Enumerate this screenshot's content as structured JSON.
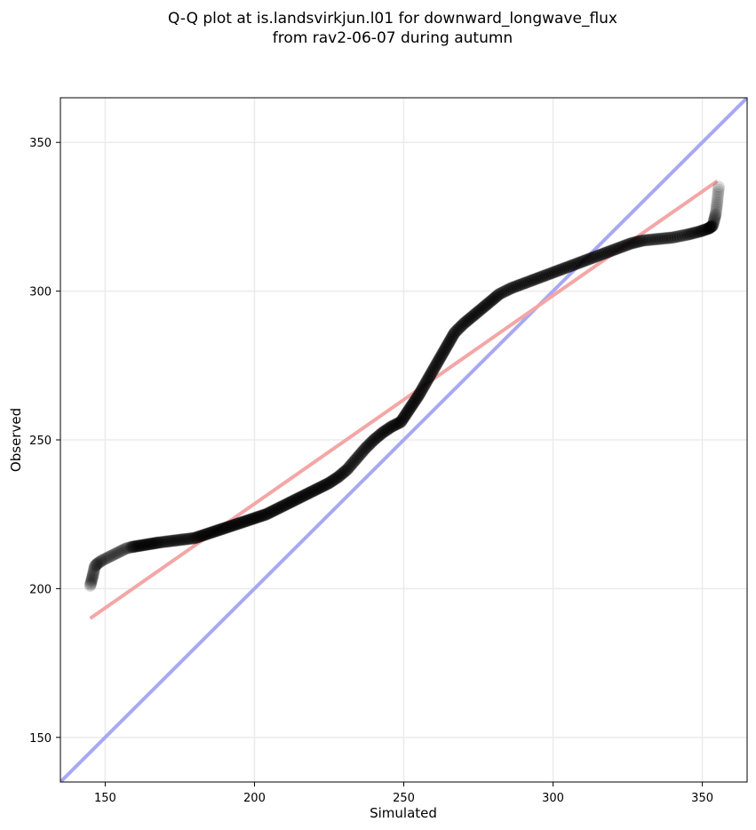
{
  "chart_data": {
    "type": "scatter",
    "title_lines": [
      "Q-Q plot at is.landsvirkjun.l01 for downward_longwave_flux",
      "from rav2-06-07 during autumn"
    ],
    "xlabel": "Simulated",
    "ylabel": "Observed",
    "xlim": [
      135,
      365
    ],
    "ylim": [
      135,
      365
    ],
    "xticks": [
      150,
      200,
      250,
      300,
      350
    ],
    "yticks": [
      150,
      200,
      250,
      300,
      350
    ],
    "grid": true,
    "colors": {
      "points": "#000000",
      "fit_line": "#f4a6a6",
      "identity_line": "#a8a8f4",
      "grid": "#ebebeb"
    },
    "fit_line": {
      "x": [
        145,
        355
      ],
      "y": [
        190,
        337
      ]
    },
    "identity_line": {
      "x": [
        135,
        365
      ],
      "y": [
        135,
        365
      ]
    },
    "quantiles": [
      [
        145,
        201
      ],
      [
        145.5,
        203
      ],
      [
        146,
        205
      ],
      [
        146.5,
        207.5
      ],
      [
        147.5,
        208.5
      ],
      [
        149,
        209.5
      ],
      [
        151,
        210.5
      ],
      [
        153,
        211.5
      ],
      [
        155,
        212.5
      ],
      [
        157,
        213.5
      ],
      [
        159,
        214
      ],
      [
        162,
        214.5
      ],
      [
        165,
        215
      ],
      [
        168,
        215.5
      ],
      [
        172,
        216
      ],
      [
        176,
        216.5
      ],
      [
        180,
        217
      ],
      [
        183,
        218
      ],
      [
        186,
        219
      ],
      [
        189,
        220
      ],
      [
        192,
        221
      ],
      [
        195,
        222
      ],
      [
        198,
        223
      ],
      [
        201,
        224
      ],
      [
        204,
        225
      ],
      [
        207,
        226.5
      ],
      [
        210,
        228
      ],
      [
        213,
        229.5
      ],
      [
        216,
        231
      ],
      [
        219,
        232.5
      ],
      [
        222,
        234
      ],
      [
        225,
        235.5
      ],
      [
        228,
        237.5
      ],
      [
        231,
        240
      ],
      [
        234,
        243.5
      ],
      [
        237,
        247
      ],
      [
        240,
        250
      ],
      [
        243,
        252.5
      ],
      [
        246,
        254.5
      ],
      [
        249,
        256
      ],
      [
        251,
        259
      ],
      [
        253,
        262
      ],
      [
        255,
        265
      ],
      [
        257,
        268.5
      ],
      [
        259,
        272
      ],
      [
        261,
        275.5
      ],
      [
        263,
        279
      ],
      [
        265,
        282.5
      ],
      [
        267,
        286
      ],
      [
        270,
        289
      ],
      [
        273,
        291.5
      ],
      [
        276,
        294
      ],
      [
        279,
        296.5
      ],
      [
        282,
        299
      ],
      [
        286,
        301
      ],
      [
        290,
        302.5
      ],
      [
        294,
        304
      ],
      [
        298,
        305.5
      ],
      [
        302,
        307
      ],
      [
        306,
        308.5
      ],
      [
        310,
        310
      ],
      [
        314,
        311.5
      ],
      [
        318,
        313
      ],
      [
        322,
        314.5
      ],
      [
        326,
        316
      ],
      [
        330,
        317
      ],
      [
        335,
        317.5
      ],
      [
        340,
        318
      ],
      [
        345,
        319
      ],
      [
        349,
        320
      ],
      [
        352,
        321
      ],
      [
        353.5,
        322
      ],
      [
        354,
        324
      ],
      [
        354.5,
        326
      ],
      [
        355,
        330
      ],
      [
        355.5,
        335
      ]
    ]
  }
}
